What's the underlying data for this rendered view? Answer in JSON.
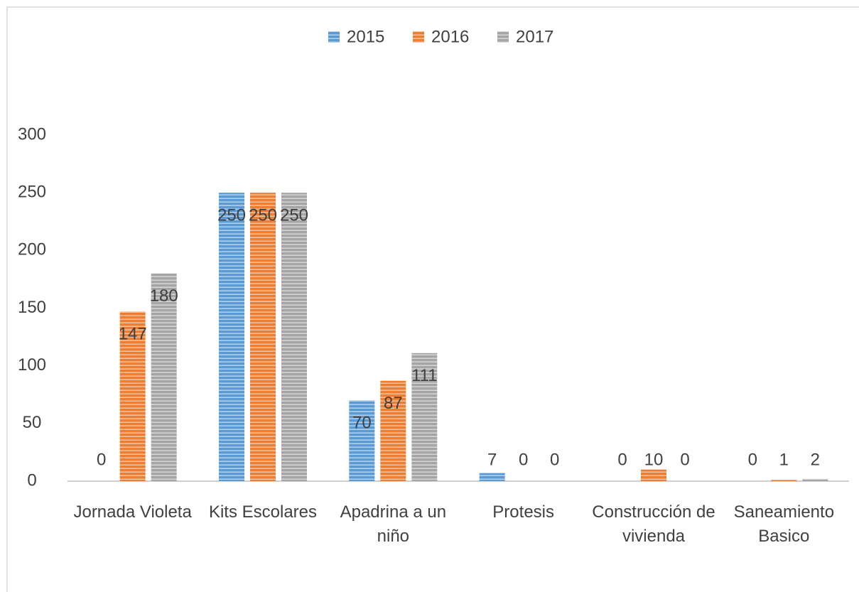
{
  "chart_data": {
    "type": "bar",
    "categories": [
      "Jornada Violeta",
      "Kits Escolares",
      "Apadrina a un niño",
      "Protesis",
      "Construcción de vivienda",
      "Saneamiento Basico"
    ],
    "series": [
      {
        "name": "2015",
        "color": "#5b9bd5",
        "values": [
          0,
          250,
          70,
          7,
          0,
          0
        ]
      },
      {
        "name": "2016",
        "color": "#ed7d31",
        "values": [
          147,
          250,
          87,
          0,
          10,
          1
        ]
      },
      {
        "name": "2017",
        "color": "#a5a5a5",
        "values": [
          180,
          250,
          111,
          0,
          0,
          2
        ]
      }
    ],
    "ylim": [
      0,
      300
    ],
    "yticks": [
      0,
      50,
      100,
      150,
      200,
      250,
      300
    ],
    "grid": false,
    "legend": "top"
  }
}
